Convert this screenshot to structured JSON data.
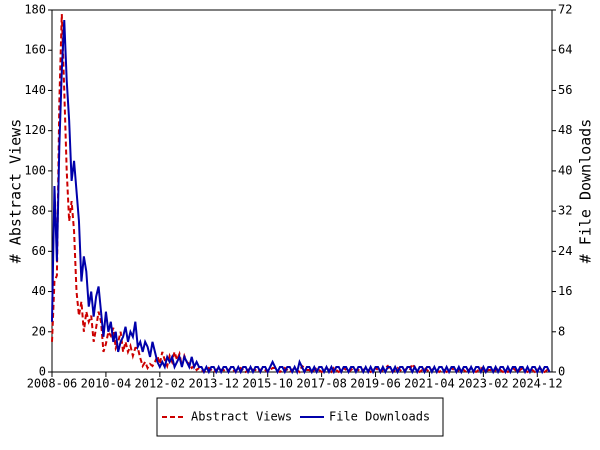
{
  "chart_data": {
    "type": "line",
    "y_label": "# Abstract Views",
    "y2_label": "# File Downloads",
    "x": [
      "2008-06",
      "2008-07",
      "2008-08",
      "2008-09",
      "2008-10",
      "2008-11",
      "2008-12",
      "2009-01",
      "2009-02",
      "2009-03",
      "2009-04",
      "2009-05",
      "2009-06",
      "2009-07",
      "2009-08",
      "2009-09",
      "2009-10",
      "2009-11",
      "2009-12",
      "2010-01",
      "2010-02",
      "2010-03",
      "2010-04",
      "2010-05",
      "2010-06",
      "2010-07",
      "2010-08",
      "2010-09",
      "2010-10",
      "2010-11",
      "2010-12",
      "2011-01",
      "2011-02",
      "2011-03",
      "2011-04",
      "2011-05",
      "2011-06",
      "2011-07",
      "2011-08",
      "2011-09",
      "2011-10",
      "2011-11",
      "2011-12",
      "2012-01",
      "2012-02",
      "2012-03",
      "2012-04",
      "2012-05",
      "2012-06",
      "2012-07",
      "2012-08",
      "2012-09",
      "2012-10",
      "2012-11",
      "2012-12",
      "2013-01",
      "2013-02",
      "2013-03",
      "2013-04",
      "2013-05",
      "2013-06",
      "2013-07",
      "2013-08",
      "2013-09",
      "2013-10",
      "2013-11",
      "2013-12",
      "2014-01",
      "2014-02",
      "2014-03",
      "2014-04",
      "2014-05",
      "2014-06",
      "2014-07",
      "2014-08",
      "2014-09",
      "2014-10",
      "2014-11",
      "2014-12",
      "2015-01",
      "2015-02",
      "2015-03",
      "2015-04",
      "2015-05",
      "2015-06",
      "2015-07",
      "2015-08",
      "2015-09",
      "2015-10",
      "2015-11",
      "2015-12",
      "2016-01",
      "2016-02",
      "2016-03",
      "2016-04",
      "2016-05",
      "2016-06",
      "2016-07",
      "2016-08",
      "2016-09",
      "2016-10",
      "2016-11",
      "2016-12",
      "2017-01",
      "2017-02",
      "2017-03",
      "2017-04",
      "2017-05",
      "2017-06",
      "2017-07",
      "2017-08",
      "2017-09",
      "2017-10",
      "2017-11",
      "2017-12",
      "2018-01",
      "2018-02",
      "2018-03",
      "2018-04",
      "2018-05",
      "2018-06",
      "2018-07",
      "2018-08",
      "2018-09",
      "2018-10",
      "2018-11",
      "2018-12",
      "2019-01",
      "2019-02",
      "2019-03",
      "2019-04",
      "2019-05",
      "2019-06",
      "2019-07",
      "2019-08",
      "2019-09",
      "2019-10",
      "2019-11",
      "2019-12",
      "2020-01",
      "2020-02",
      "2020-03",
      "2020-04",
      "2020-05",
      "2020-06",
      "2020-07",
      "2020-08",
      "2020-09",
      "2020-10",
      "2020-11",
      "2020-12",
      "2021-01",
      "2021-02",
      "2021-03",
      "2021-04",
      "2021-05",
      "2021-06",
      "2021-07",
      "2021-08",
      "2021-09",
      "2021-10",
      "2021-11",
      "2021-12",
      "2022-01",
      "2022-02",
      "2022-03",
      "2022-04",
      "2022-05",
      "2022-06",
      "2022-07",
      "2022-08",
      "2022-09",
      "2022-10",
      "2022-11",
      "2022-12",
      "2023-01",
      "2023-02",
      "2023-03",
      "2023-04",
      "2023-05",
      "2023-06",
      "2023-07",
      "2023-08",
      "2023-09",
      "2023-10",
      "2023-11",
      "2023-12",
      "2024-01",
      "2024-02",
      "2024-03",
      "2024-04",
      "2024-05",
      "2024-06",
      "2024-07",
      "2024-08",
      "2024-09",
      "2024-10",
      "2024-11",
      "2024-12",
      "2025-01",
      "2025-02",
      "2025-03",
      "2025-04",
      "2025-05"
    ],
    "series": [
      {
        "name": "Abstract Views",
        "color": "#cc0000",
        "dashed": true,
        "values": [
          15,
          45,
          48,
          135,
          178,
          140,
          100,
          75,
          85,
          70,
          40,
          28,
          35,
          20,
          30,
          25,
          28,
          15,
          22,
          30,
          25,
          10,
          14,
          20,
          18,
          22,
          12,
          15,
          20,
          10,
          15,
          10,
          13,
          8,
          12,
          12,
          7,
          3,
          5,
          2,
          4,
          3,
          5,
          8,
          4,
          10,
          6,
          3,
          8,
          5,
          10,
          6,
          9,
          3,
          8,
          5,
          4,
          2,
          3,
          1,
          2,
          1,
          0,
          1,
          2,
          1,
          0,
          1,
          2,
          1,
          1,
          0,
          1,
          2,
          1,
          0,
          1,
          2,
          1,
          0,
          1,
          2,
          1,
          1,
          0,
          1,
          2,
          1,
          0,
          1,
          2,
          2,
          1,
          0,
          1,
          2,
          1,
          0,
          1,
          2,
          1,
          0,
          3,
          2,
          1,
          1,
          0,
          1,
          2,
          1,
          0,
          1,
          2,
          1,
          0,
          2,
          1,
          0,
          1,
          2,
          1,
          0,
          1,
          2,
          1,
          1,
          0,
          1,
          2,
          1,
          0,
          1,
          2,
          1,
          0,
          1,
          2,
          3,
          1,
          0,
          1,
          2,
          1,
          0,
          1,
          2,
          1,
          4,
          2,
          1,
          0,
          1,
          2,
          1,
          0,
          1,
          2,
          1,
          0,
          1,
          1,
          0,
          1,
          2,
          1,
          0,
          1,
          2,
          1,
          0,
          1,
          2,
          1,
          0,
          1,
          2,
          1,
          0,
          1,
          1,
          0,
          1,
          2,
          1,
          0,
          1,
          0,
          1,
          2,
          1,
          0,
          1,
          2,
          1,
          0,
          1,
          1,
          0,
          1,
          2,
          1,
          0,
          1,
          0
        ]
      },
      {
        "name": "File Downloads",
        "color": "#0000aa",
        "axis": "y2",
        "values": [
          10,
          37,
          22,
          45,
          60,
          70,
          58,
          50,
          38,
          42,
          36,
          30,
          18,
          23,
          20,
          13,
          16,
          11,
          15,
          17,
          12,
          7,
          12,
          8,
          10,
          6,
          8,
          4,
          6,
          7,
          9,
          6,
          8,
          7,
          10,
          5,
          6,
          4,
          6,
          5,
          3,
          6,
          4,
          2,
          1,
          2,
          1,
          3,
          2,
          3,
          1,
          2,
          3,
          1,
          3,
          2,
          1,
          3,
          1,
          2,
          1,
          1,
          0,
          1,
          0,
          1,
          1,
          0,
          1,
          0,
          1,
          1,
          0,
          1,
          1,
          0,
          1,
          0,
          1,
          1,
          0,
          1,
          0,
          1,
          1,
          0,
          1,
          1,
          0,
          1,
          2,
          1,
          0,
          1,
          1,
          0,
          1,
          1,
          0,
          1,
          0,
          2,
          1,
          0,
          1,
          1,
          0,
          1,
          0,
          1,
          1,
          0,
          1,
          0,
          1,
          0,
          1,
          1,
          0,
          1,
          1,
          0,
          1,
          1,
          0,
          1,
          1,
          0,
          1,
          0,
          1,
          0,
          1,
          1,
          0,
          1,
          0,
          1,
          1,
          0,
          1,
          0,
          1,
          1,
          0,
          1,
          1,
          0,
          1,
          0,
          1,
          1,
          0,
          1,
          1,
          0,
          1,
          0,
          1,
          1,
          0,
          1,
          0,
          1,
          1,
          0,
          1,
          0,
          1,
          1,
          0,
          1,
          0,
          1,
          1,
          0,
          1,
          0,
          1,
          1,
          0,
          1,
          0,
          1,
          1,
          0,
          1,
          0,
          1,
          1,
          0,
          1,
          1,
          0,
          1,
          0,
          1,
          1,
          0,
          1,
          0,
          1,
          1,
          0
        ]
      }
    ],
    "xlim": [
      "2008-06",
      "2025-06"
    ],
    "xticks": [
      "2008-06",
      "2010-04",
      "2012-02",
      "2013-12",
      "2015-10",
      "2017-08",
      "2019-06",
      "2021-04",
      "2023-02",
      "2024-12"
    ],
    "ylim": [
      0,
      180
    ],
    "yticks": [
      0,
      20,
      40,
      60,
      80,
      100,
      120,
      140,
      160,
      180
    ],
    "y2lim": [
      0,
      72
    ],
    "y2ticks": [
      0,
      8,
      16,
      24,
      32,
      40,
      48,
      56,
      64,
      72
    ],
    "legend": "bottom"
  }
}
